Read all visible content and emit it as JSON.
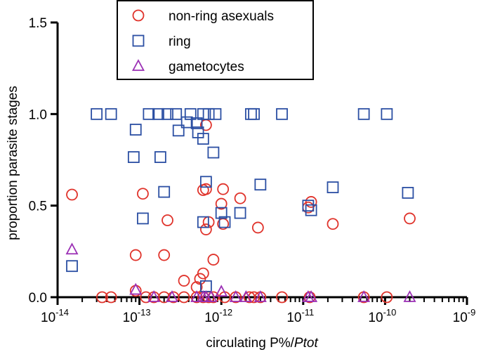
{
  "chart_data": {
    "type": "scatter",
    "title": "",
    "xlabel": {
      "main": "circulating P%/",
      "italic": "Ptot"
    },
    "ylabel": "proportion parasite stages",
    "x_scale": "log",
    "xlim": [
      1e-14,
      1e-09
    ],
    "ylim": [
      0,
      1.5
    ],
    "x_tick_labels": [
      {
        "value": 1e-14,
        "base": "10",
        "exp": "-14"
      },
      {
        "value": 1e-13,
        "base": "10",
        "exp": "-13"
      },
      {
        "value": 1e-12,
        "base": "10",
        "exp": "-12"
      },
      {
        "value": 1e-11,
        "base": "10",
        "exp": "-11"
      },
      {
        "value": 1e-10,
        "base": "10",
        "exp": "-10"
      },
      {
        "value": 1e-09,
        "base": "10",
        "exp": "-9"
      }
    ],
    "y_ticks": [
      0.0,
      0.5,
      1.0,
      1.5
    ],
    "y_tick_labels": [
      "0.0",
      "0.5",
      "1.0",
      "1.5"
    ],
    "legend_position": "top-center",
    "series": [
      {
        "name": "non-ring asexuals",
        "marker": "circle",
        "color": "#e0332b",
        "points": [
          [
            1.5e-14,
            0.56
          ],
          [
            1.1e-13,
            0.565
          ],
          [
            9e-14,
            0.23
          ],
          [
            2e-13,
            0.23
          ],
          [
            2.2e-13,
            0.42
          ],
          [
            6e-13,
            0.585
          ],
          [
            6.5e-13,
            0.59
          ],
          [
            6.5e-13,
            0.37
          ],
          [
            7e-13,
            0.41
          ],
          [
            1.05e-12,
            0.59
          ],
          [
            1.7e-12,
            0.54
          ],
          [
            1e-12,
            0.51
          ],
          [
            1.05e-12,
            0.4
          ],
          [
            8e-13,
            0.205
          ],
          [
            6e-13,
            0.13
          ],
          [
            5.5e-13,
            0.1
          ],
          [
            5e-13,
            0.055
          ],
          [
            3.5e-13,
            0.09
          ],
          [
            6.5e-13,
            0.94
          ],
          [
            2.8e-12,
            0.38
          ],
          [
            1.25e-11,
            0.52
          ],
          [
            1.15e-11,
            0.49
          ],
          [
            2.3e-11,
            0.4
          ],
          [
            2e-10,
            0.43
          ],
          [
            9e-14,
            0.035
          ],
          [
            3.5e-14,
            0.0
          ],
          [
            4.5e-14,
            0.0
          ],
          [
            1.2e-13,
            0.0
          ],
          [
            1.5e-13,
            0.0
          ],
          [
            2e-13,
            0.0
          ],
          [
            2.6e-13,
            0.0
          ],
          [
            3.5e-13,
            0.0
          ],
          [
            5e-13,
            0.0
          ],
          [
            6e-13,
            0.0
          ],
          [
            7e-13,
            0.0
          ],
          [
            8e-13,
            0.0
          ],
          [
            1.1e-12,
            0.0
          ],
          [
            1.5e-12,
            0.0
          ],
          [
            2.2e-12,
            0.0
          ],
          [
            2.5e-12,
            0.0
          ],
          [
            3e-12,
            0.0
          ],
          [
            5.5e-12,
            0.0
          ],
          [
            1.2e-11,
            0.0
          ],
          [
            5.5e-11,
            0.0
          ],
          [
            1.05e-10,
            0.0
          ]
        ]
      },
      {
        "name": "ring",
        "marker": "square",
        "color": "#2b4fa3",
        "points": [
          [
            3e-14,
            1.0
          ],
          [
            4.5e-14,
            1.0
          ],
          [
            1.3e-13,
            1.0
          ],
          [
            1.7e-13,
            1.0
          ],
          [
            2.2e-13,
            1.0
          ],
          [
            2.8e-13,
            1.0
          ],
          [
            4.2e-13,
            1.0
          ],
          [
            6e-13,
            1.0
          ],
          [
            7e-13,
            1.0
          ],
          [
            8.5e-13,
            1.0
          ],
          [
            2.3e-12,
            1.0
          ],
          [
            2.5e-12,
            1.0
          ],
          [
            5.5e-12,
            1.0
          ],
          [
            5.5e-11,
            1.0
          ],
          [
            1.05e-10,
            1.0
          ],
          [
            9e-14,
            0.915
          ],
          [
            3e-13,
            0.91
          ],
          [
            3.8e-13,
            0.955
          ],
          [
            5e-13,
            0.95
          ],
          [
            5.2e-13,
            0.9
          ],
          [
            6e-13,
            0.865
          ],
          [
            8e-13,
            0.79
          ],
          [
            8.5e-14,
            0.765
          ],
          [
            1.8e-13,
            0.765
          ],
          [
            6.5e-13,
            0.63
          ],
          [
            2e-13,
            0.575
          ],
          [
            3e-12,
            0.615
          ],
          [
            2.3e-11,
            0.6
          ],
          [
            1.9e-10,
            0.57
          ],
          [
            1.1e-13,
            0.43
          ],
          [
            6e-13,
            0.41
          ],
          [
            1.1e-12,
            0.41
          ],
          [
            1e-12,
            0.46
          ],
          [
            1.7e-12,
            0.46
          ],
          [
            1.15e-11,
            0.5
          ],
          [
            1.25e-11,
            0.475
          ],
          [
            1.5e-14,
            0.17
          ],
          [
            6.5e-13,
            0.06
          ]
        ]
      },
      {
        "name": "gametocytes",
        "marker": "triangle",
        "color": "#9b2fb5",
        "points": [
          [
            1.5e-14,
            0.26
          ],
          [
            9e-14,
            0.04
          ],
          [
            1e-12,
            0.03
          ],
          [
            1.5e-13,
            0.0
          ],
          [
            2.5e-13,
            0.0
          ],
          [
            5e-13,
            0.0
          ],
          [
            6e-13,
            0.0
          ],
          [
            6.5e-13,
            0.0
          ],
          [
            7.5e-13,
            0.0
          ],
          [
            1.5e-12,
            0.0
          ],
          [
            2e-12,
            0.0
          ],
          [
            3e-12,
            0.0
          ],
          [
            1.15e-11,
            0.0
          ],
          [
            1.25e-11,
            0.0
          ],
          [
            5.5e-11,
            0.0
          ],
          [
            2e-10,
            0.0
          ]
        ]
      }
    ]
  }
}
